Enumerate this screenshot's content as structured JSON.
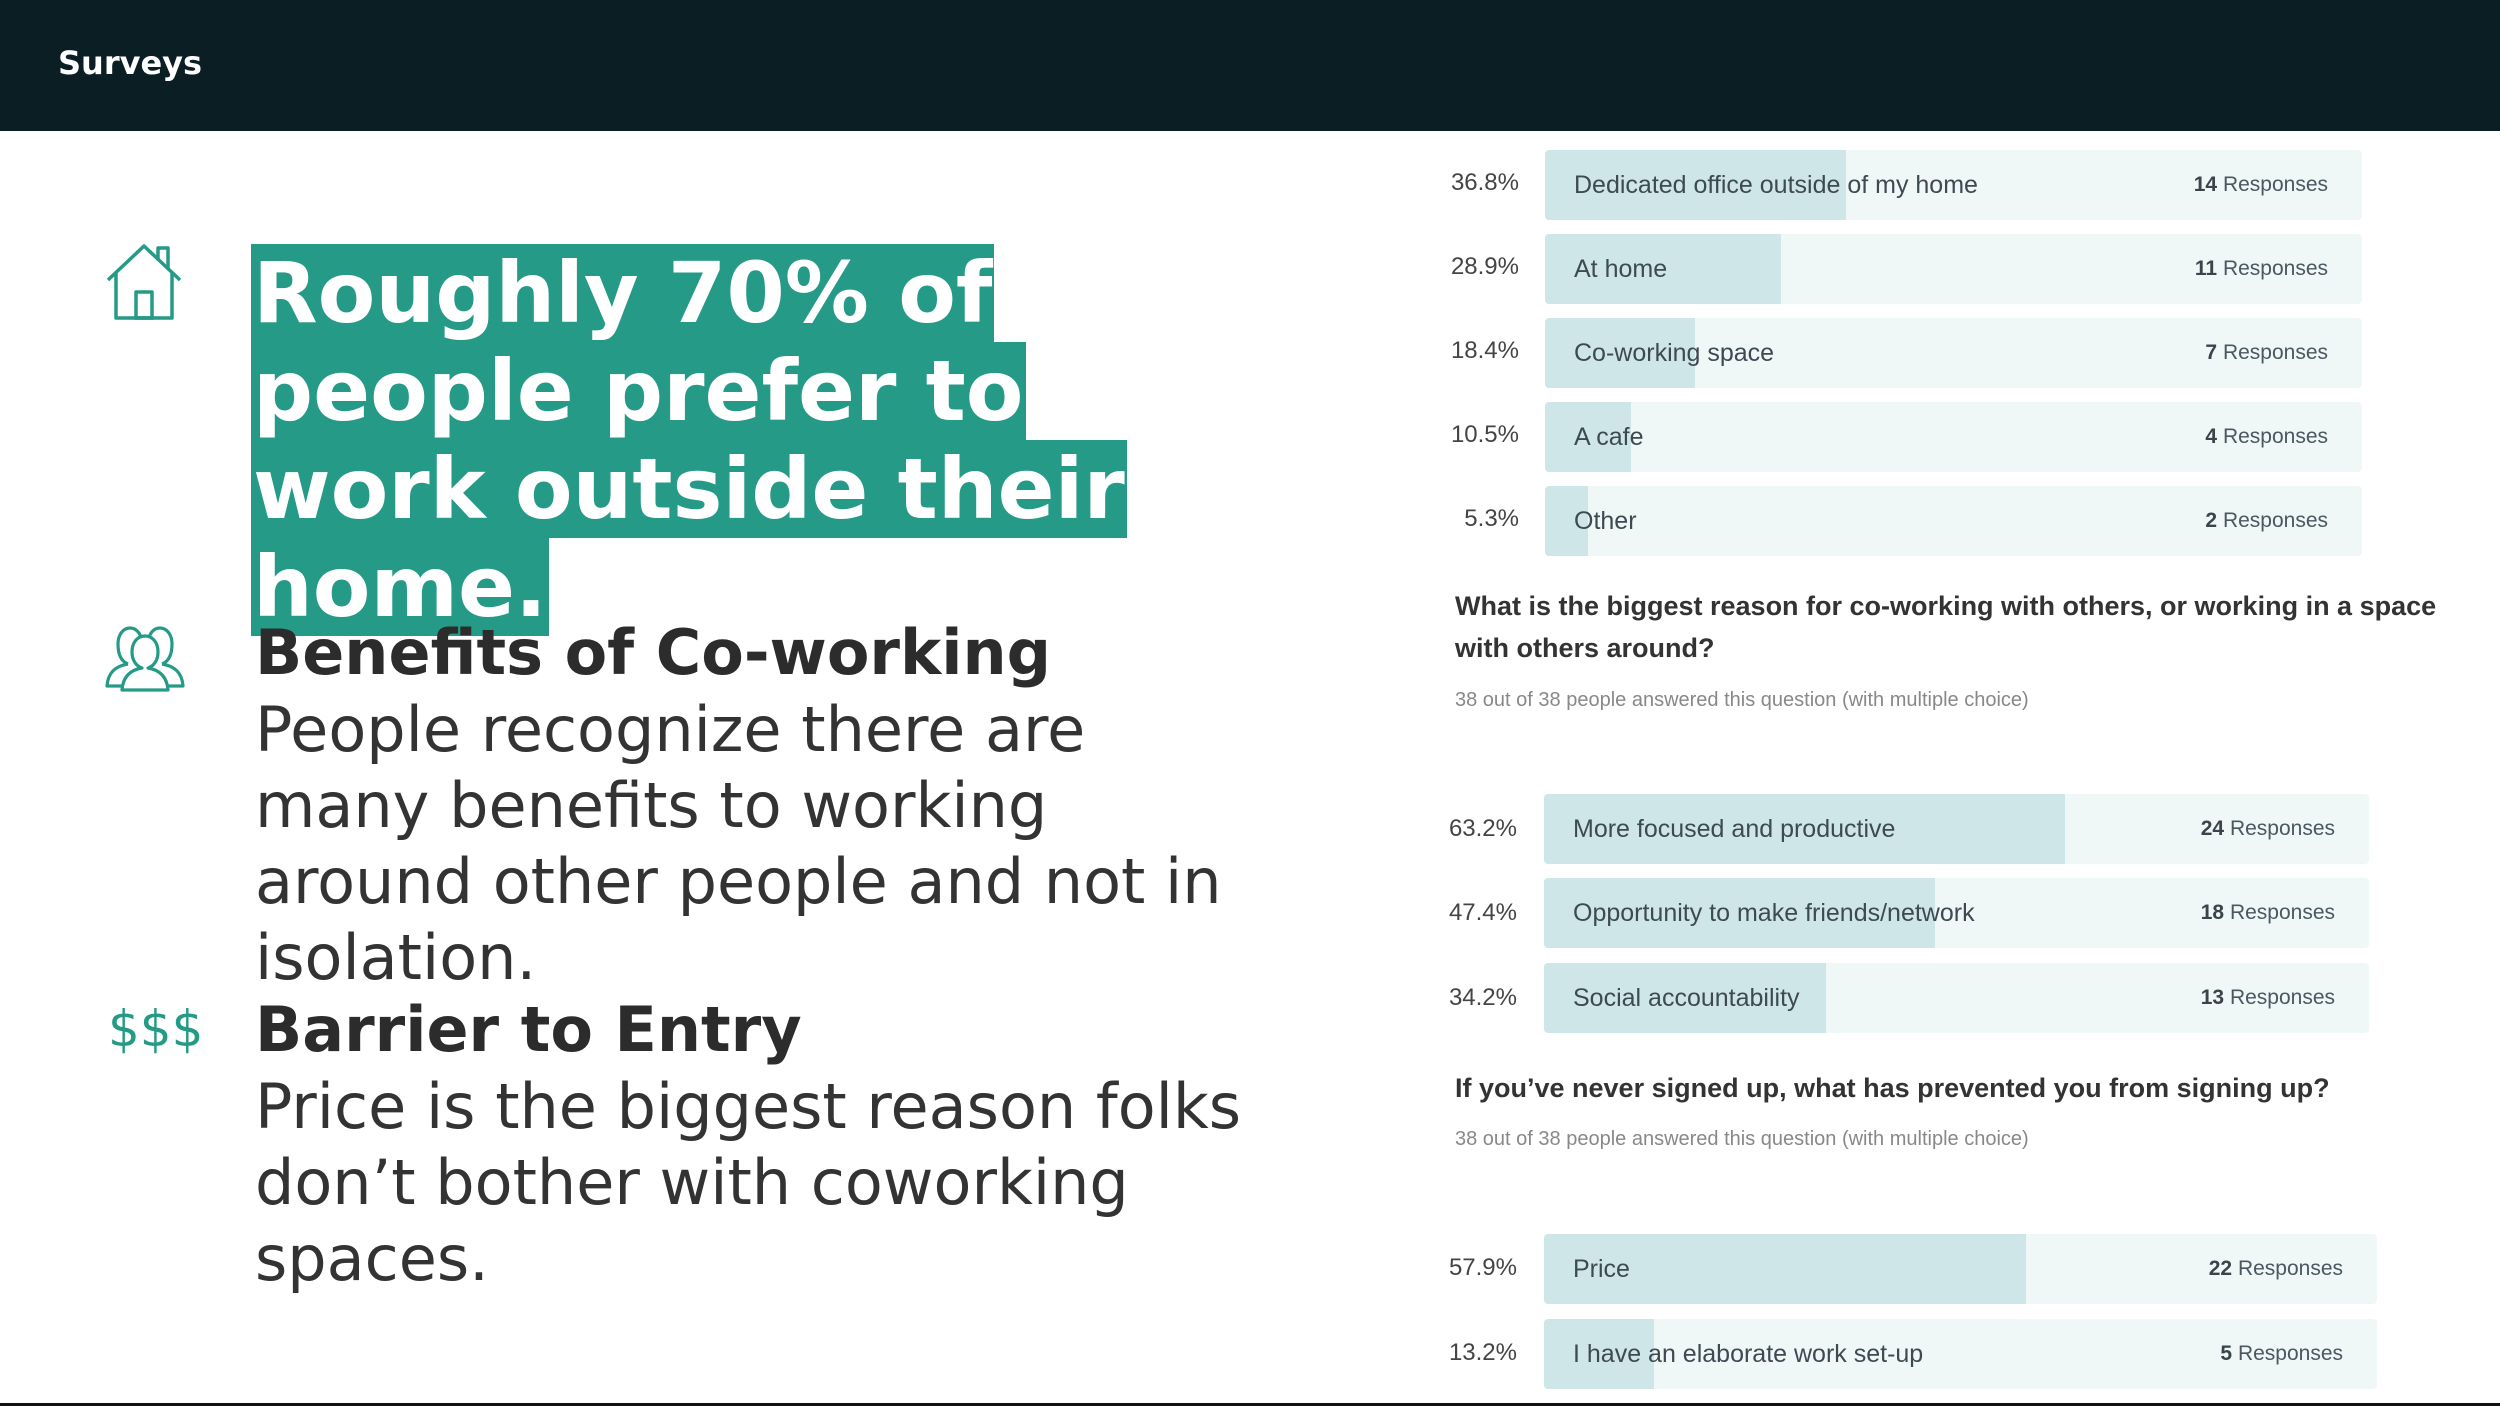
{
  "header": {
    "title": "Surveys"
  },
  "headline": "Roughly 70% of people prefer to work outside their home.",
  "benefits": {
    "title": "Benefits of Co-working",
    "body": "People recognize there are many benefits to working around other people and not in isolation."
  },
  "barrier": {
    "icon_text": "$$$",
    "title": "Barrier to Entry",
    "body": "Price is the biggest reason folks don’t bother with coworking spaces."
  },
  "colors": {
    "accent": "#259a87",
    "topbar": "#0b1e23",
    "bar_fill": "#cfe6e9",
    "bar_track": "#eff7f7"
  },
  "survey": {
    "q1_results": [
      {
        "pct": "36.8%",
        "fraction": 0.368,
        "label": "Dedicated office outside of my home",
        "count": "14",
        "suffix": "Responses"
      },
      {
        "pct": "28.9%",
        "fraction": 0.289,
        "label": "At home",
        "count": "11",
        "suffix": "Responses"
      },
      {
        "pct": "18.4%",
        "fraction": 0.184,
        "label": "Co-working space",
        "count": "7",
        "suffix": "Responses"
      },
      {
        "pct": "10.5%",
        "fraction": 0.105,
        "label": "A cafe",
        "count": "4",
        "suffix": "Responses"
      },
      {
        "pct": "5.3%",
        "fraction": 0.053,
        "label": "Other",
        "count": "2",
        "suffix": "Responses"
      }
    ],
    "q2": {
      "question": "What is the biggest reason for co-working with others, or working in a space with others around?",
      "answered": "38 out of 38 people answered this question (with multiple choice)",
      "results": [
        {
          "pct": "63.2%",
          "fraction": 0.632,
          "label": "More focused and productive",
          "count": "24",
          "suffix": "Responses"
        },
        {
          "pct": "47.4%",
          "fraction": 0.474,
          "label": "Opportunity to make friends/network",
          "count": "18",
          "suffix": "Responses"
        },
        {
          "pct": "34.2%",
          "fraction": 0.342,
          "label": "Social accountability",
          "count": "13",
          "suffix": "Responses"
        }
      ]
    },
    "q3": {
      "question": "If you’ve never signed up, what has prevented you from signing up?",
      "answered": "38 out of 38 people answered this question (with multiple choice)",
      "results": [
        {
          "pct": "57.9%",
          "fraction": 0.579,
          "label": "Price",
          "count": "22",
          "suffix": "Responses"
        },
        {
          "pct": "13.2%",
          "fraction": 0.132,
          "label": "I have an elaborate work set-up",
          "count": "5",
          "suffix": "Responses"
        }
      ]
    }
  }
}
